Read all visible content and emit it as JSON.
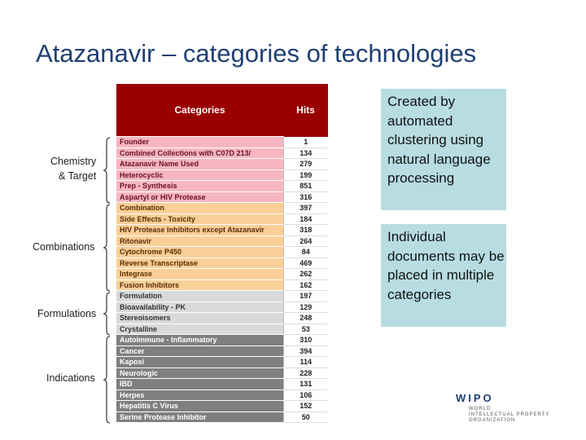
{
  "title": "Atazanavir – categories of technologies",
  "table": {
    "header": {
      "category": "Categories",
      "hits": "Hits"
    },
    "rows": [
      {
        "name": "Founder",
        "hits": "1",
        "group": "chem"
      },
      {
        "name": "Combined Collections with C07D 213/",
        "hits": "134",
        "group": "chem"
      },
      {
        "name": "Atazanavir Name Used",
        "hits": "279",
        "group": "chem"
      },
      {
        "name": "Heterocyclic",
        "hits": "199",
        "group": "chem"
      },
      {
        "name": "Prep - Synthesis",
        "hits": "851",
        "group": "chem"
      },
      {
        "name": "Aspartyl or HIV Protease",
        "hits": "316",
        "group": "chem"
      },
      {
        "name": "Combination",
        "hits": "397",
        "group": "comb"
      },
      {
        "name": "Side Effects - Toxicity",
        "hits": "184",
        "group": "comb"
      },
      {
        "name": "HIV Protease Inhibitors except Atazanavir",
        "hits": "318",
        "group": "comb"
      },
      {
        "name": "Ritonavir",
        "hits": "264",
        "group": "comb"
      },
      {
        "name": "Cytochrome P450",
        "hits": "84",
        "group": "comb"
      },
      {
        "name": "Reverse Transcriptase",
        "hits": "469",
        "group": "comb"
      },
      {
        "name": "Integrase",
        "hits": "262",
        "group": "comb"
      },
      {
        "name": "Fusion Inhibitors",
        "hits": "162",
        "group": "comb"
      },
      {
        "name": "Formulation",
        "hits": "197",
        "group": "form"
      },
      {
        "name": "Bioavailability - PK",
        "hits": "129",
        "group": "form"
      },
      {
        "name": "Stereoisomers",
        "hits": "248",
        "group": "form"
      },
      {
        "name": "Crystalline",
        "hits": "53",
        "group": "form"
      },
      {
        "name": "Autoimmune - Inflammatory",
        "hits": "310",
        "group": "ind"
      },
      {
        "name": "Cancer",
        "hits": "394",
        "group": "ind"
      },
      {
        "name": "Kaposi",
        "hits": "114",
        "group": "ind"
      },
      {
        "name": "Neurologic",
        "hits": "228",
        "group": "ind"
      },
      {
        "name": "IBD",
        "hits": "131",
        "group": "ind"
      },
      {
        "name": "Herpes",
        "hits": "106",
        "group": "ind"
      },
      {
        "name": "Hepatitis C Virus",
        "hits": "152",
        "group": "ind"
      },
      {
        "name": "Serine Protease Inhibitor",
        "hits": "50",
        "group": "ind"
      }
    ]
  },
  "groups": {
    "chem": {
      "label_line1": "Chemistry",
      "label_line2": "& Target"
    },
    "comb": {
      "label": "Combinations"
    },
    "form": {
      "label": "Formulations"
    },
    "ind": {
      "label": "Indications"
    }
  },
  "boxes": {
    "box1": "Created by automated clustering using natural language processing",
    "box2": "Individual documents may be placed in multiple categories"
  },
  "logo": {
    "name": "WIPO",
    "sub1": "WORLD",
    "sub2": "INTELLECTUAL PROPERTY",
    "sub3": "ORGANIZATION"
  },
  "colors": {
    "title": "#1f3f73",
    "header": "#990000",
    "chem": "#f6b6c0",
    "comb": "#f9cf98",
    "form": "#d9d9d9",
    "ind": "#7f7f7f",
    "box": "#b7dde3"
  }
}
